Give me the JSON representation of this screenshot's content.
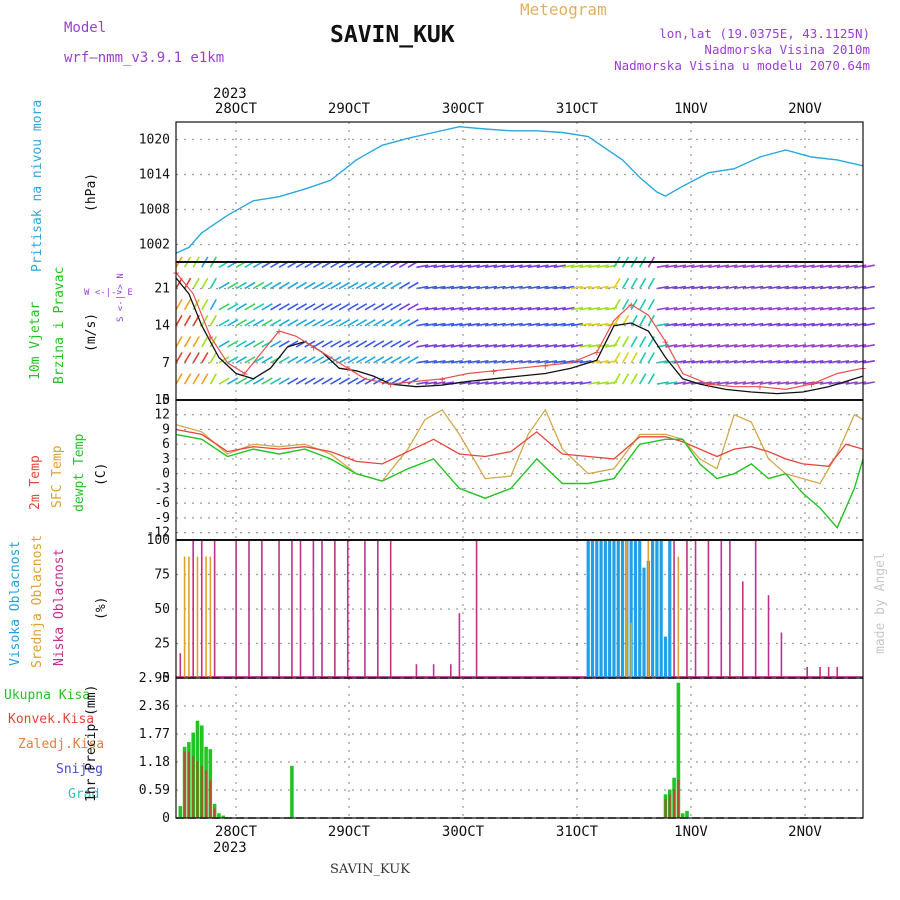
{
  "header": {
    "model_label": "Model",
    "model_name": "wrf—nmm_v3.9.1  e1km",
    "station": "SAVIN_KUK",
    "product": "Meteogram",
    "lonlat": "lon,lat (19.0375E, 43.1125N)",
    "elevation": "Nadmorska Visina 2010m",
    "model_elevation": "Nadmorska Visina u modelu 2070.64m",
    "footer_station": "SAVIN_KUK",
    "watermark": "made by Angel",
    "year": "2023"
  },
  "colors": {
    "pressure": "#2aa8e0",
    "temp2m": "#e8463c",
    "sfc": "#d4a84a",
    "dew": "#22c422",
    "low_cloud": "#c0308c",
    "mid_cloud": "#e0a030",
    "high_cloud": "#20a0e8",
    "total_precip": "#22c422",
    "conv_precip": "#e8463c",
    "frozen": "#e87c3c",
    "snow": "#4a4ad8",
    "grad": "#30c0c0",
    "wind_label": "#22c422",
    "wind_purple": "#9a40d0"
  },
  "x_axis": {
    "days": [
      "28OCT",
      "29OCT",
      "30OCT",
      "31OCT",
      "1NOV",
      "2NOV"
    ],
    "year": "2023"
  },
  "panels": {
    "pressure": {
      "ylabel": "Pritisak na nivou mora",
      "unit": "(hPa)",
      "ticks": [
        "1002",
        "1008",
        "1014",
        "1020"
      ]
    },
    "wind": {
      "ylabel1": "10m Vjetar",
      "ylabel2": "Brzina i Pravac",
      "unit": "(m/s)",
      "ticks": [
        "0",
        "7",
        "14",
        "21"
      ],
      "compass_we": "W <-|-> E",
      "compass_ns": "S <-|-> N"
    },
    "temp": {
      "ylabel1": "2m Temp",
      "ylabel2": "SFC Temp",
      "ylabel3": "dewpt Temp",
      "unit": "(C)",
      "ticks": [
        "-12",
        "-9",
        "-6",
        "-3",
        "0",
        "3",
        "6",
        "9",
        "12",
        "15"
      ]
    },
    "cloud": {
      "ylabel1": "Visoka Oblacnost",
      "ylabel2": "Srednja Oblacnost",
      "ylabel3": "Niska Oblacnost",
      "unit": "(%)",
      "ticks": [
        "0",
        "25",
        "50",
        "75",
        "100"
      ]
    },
    "precip": {
      "unit": "1hr Precip (mm)",
      "ticks": [
        "0",
        "0.59",
        "1.18",
        "1.77",
        "2.36",
        "2.95"
      ],
      "legend": [
        "Ukupna Kisa",
        "Konvek.Kisa",
        "Zaledj.Kisa",
        "Snijeg",
        "Grad"
      ]
    }
  },
  "chart_data": [
    {
      "type": "line",
      "name": "pressure",
      "x_unit": "hours since 27OCT 12UTC (approx.)",
      "ylim": [
        999,
        1023
      ],
      "x": [
        0,
        3,
        6,
        12,
        18,
        24,
        30,
        36,
        42,
        48,
        54,
        60,
        66,
        72,
        78,
        84,
        90,
        96,
        100,
        104,
        108,
        112,
        114,
        118,
        124,
        130,
        136,
        142,
        148,
        154,
        160
      ],
      "values": [
        1000.5,
        1001.5,
        1004,
        1007,
        1009.5,
        1010.2,
        1011.5,
        1013,
        1016.5,
        1019,
        1020.2,
        1021.2,
        1022.2,
        1021.8,
        1021.5,
        1021.5,
        1021.2,
        1020.5,
        1018.5,
        1016.5,
        1013.5,
        1011,
        1010.3,
        1012,
        1014.3,
        1015,
        1017,
        1018.2,
        1017,
        1016.5,
        1015.5
      ]
    },
    {
      "type": "line",
      "name": "wind_speed",
      "x_unit": "hours since 27OCT 12UTC (approx.)",
      "ylim": [
        0,
        26
      ],
      "series": [
        {
          "name": "mean",
          "x": [
            0,
            3,
            6,
            10,
            14,
            18,
            22,
            26,
            30,
            34,
            38,
            42,
            46,
            50,
            56,
            62,
            68,
            74,
            80,
            86,
            92,
            98,
            102,
            106,
            110,
            114,
            118,
            122,
            128,
            134,
            140,
            146,
            152,
            158,
            160
          ],
          "values": [
            23,
            20,
            14,
            8,
            5,
            4,
            6,
            10,
            11,
            9,
            6,
            5.5,
            4.5,
            3,
            2.5,
            2.8,
            3.5,
            4,
            4.5,
            5,
            6,
            7.5,
            14,
            14.5,
            13,
            8,
            4,
            3,
            2,
            1.5,
            1.2,
            1.5,
            2.5,
            4,
            4.5
          ]
        },
        {
          "name": "gust",
          "x": [
            0,
            4,
            8,
            12,
            16,
            20,
            24,
            28,
            32,
            36,
            40,
            44,
            50,
            56,
            62,
            68,
            74,
            80,
            86,
            92,
            98,
            102,
            106,
            110,
            114,
            118,
            124,
            130,
            136,
            142,
            148,
            154,
            160
          ],
          "values": [
            24,
            20,
            12,
            7,
            5,
            9,
            13,
            12,
            10,
            8,
            6,
            4,
            3,
            3.5,
            4,
            5,
            5.5,
            6,
            6.5,
            7,
            9,
            15,
            18,
            16,
            11,
            5,
            3,
            2.5,
            2.5,
            2,
            3,
            5,
            6
          ]
        }
      ]
    },
    {
      "type": "line",
      "name": "temperature",
      "x_unit": "hours since 27OCT 12UTC (approx.)",
      "ylim": [
        -13.5,
        15
      ],
      "series": [
        {
          "name": "2m Temp",
          "x": [
            0,
            6,
            12,
            18,
            24,
            30,
            36,
            42,
            48,
            54,
            60,
            66,
            72,
            78,
            84,
            90,
            96,
            102,
            108,
            114,
            118,
            122,
            126,
            130,
            134,
            138,
            142,
            146,
            152,
            156,
            160
          ],
          "values": [
            9,
            8,
            4.5,
            5.5,
            5,
            5.5,
            4.5,
            2.5,
            2,
            4.5,
            7,
            4,
            3.5,
            4.5,
            8.5,
            4,
            3.5,
            3,
            7.5,
            7.5,
            6.5,
            5,
            3.5,
            5,
            5.5,
            4.5,
            3,
            2,
            1.5,
            6,
            5
          ]
        },
        {
          "name": "SFC Temp",
          "x": [
            0,
            6,
            12,
            18,
            24,
            30,
            36,
            42,
            48,
            54,
            58,
            62,
            66,
            72,
            78,
            82,
            86,
            90,
            96,
            102,
            108,
            114,
            118,
            122,
            126,
            130,
            134,
            138,
            142,
            146,
            150,
            154,
            158,
            160
          ],
          "values": [
            10,
            8.5,
            4,
            6,
            5.5,
            6,
            4,
            0,
            -1.5,
            5,
            11,
            13,
            8,
            -1,
            -0.5,
            8,
            13,
            5,
            0,
            1,
            8,
            8,
            7,
            3,
            1,
            12,
            10.5,
            3,
            0,
            -1,
            -2,
            4,
            12,
            11
          ]
        },
        {
          "name": "dewpt Temp",
          "x": [
            0,
            6,
            12,
            18,
            24,
            30,
            36,
            42,
            48,
            54,
            60,
            66,
            72,
            78,
            84,
            90,
            96,
            102,
            108,
            114,
            118,
            122,
            126,
            130,
            134,
            138,
            142,
            146,
            150,
            154,
            158,
            160
          ],
          "values": [
            8,
            7,
            3.5,
            5,
            4,
            5,
            3,
            0,
            -1.5,
            1,
            3,
            -3,
            -5,
            -3,
            3,
            -2,
            -2,
            -1,
            6,
            7,
            7,
            2,
            -1,
            0,
            2,
            -1,
            0,
            -4,
            -7,
            -11,
            -3,
            3
          ]
        }
      ]
    },
    {
      "type": "bar",
      "name": "cloud_cover",
      "x_unit": "hours since 27OCT 12UTC (approx.)",
      "ylim": [
        0,
        100
      ],
      "series": [
        {
          "name": "Niska Oblacnost",
          "x": [
            1,
            4,
            6,
            9,
            14,
            17,
            20,
            24,
            27,
            29,
            32,
            34,
            37,
            40,
            44,
            47,
            50,
            56,
            60,
            64,
            66,
            70,
            116,
            119,
            121,
            124,
            127,
            129,
            132,
            135,
            138,
            141,
            147,
            150,
            152,
            154
          ],
          "values": [
            18,
            100,
            100,
            100,
            100,
            100,
            100,
            100,
            100,
            100,
            100,
            100,
            100,
            100,
            100,
            100,
            100,
            10,
            10,
            10,
            47,
            100,
            100,
            100,
            100,
            100,
            100,
            100,
            70,
            100,
            60,
            33,
            8,
            8,
            8,
            8
          ]
        },
        {
          "name": "Srednja Oblacnost",
          "x": [
            2,
            3,
            5,
            7,
            8,
            105,
            106,
            110,
            117
          ],
          "values": [
            88,
            88,
            88,
            88,
            88,
            100,
            40,
            100,
            88
          ]
        },
        {
          "name": "Visoka Oblacnost",
          "x": [
            96,
            97,
            98,
            99,
            100,
            101,
            102,
            103,
            104,
            105,
            106,
            107,
            108,
            109,
            110,
            111,
            112,
            113,
            114,
            115
          ],
          "values": [
            100,
            100,
            100,
            100,
            100,
            100,
            100,
            100,
            100,
            100,
            100,
            100,
            100,
            80,
            85,
            100,
            100,
            100,
            30,
            100
          ]
        }
      ]
    },
    {
      "type": "bar",
      "name": "precip_1hr",
      "x_unit": "hours since 27OCT 12UTC (approx.)",
      "ylim": [
        0,
        2.95
      ],
      "series": [
        {
          "name": "Ukupna Kisa",
          "x": [
            1,
            2,
            3,
            4,
            5,
            6,
            7,
            8,
            9,
            10,
            11,
            12,
            21,
            27,
            114,
            115,
            116,
            117,
            118,
            119
          ],
          "values": [
            0.25,
            1.5,
            1.6,
            1.8,
            2.05,
            1.95,
            1.5,
            1.45,
            0.3,
            0.1,
            0.05,
            0.02,
            0.02,
            1.1,
            0.5,
            0.6,
            0.85,
            2.85,
            0.1,
            0.15
          ]
        },
        {
          "name": "Konvek.Kisa",
          "x": [
            2,
            3,
            4,
            5,
            6,
            7,
            8,
            9,
            114,
            115,
            116,
            117
          ],
          "values": [
            1.4,
            1.4,
            1.3,
            1.2,
            1.1,
            1.0,
            0.8,
            0.2,
            0.4,
            0.5,
            0.6,
            0.8
          ]
        }
      ]
    }
  ]
}
